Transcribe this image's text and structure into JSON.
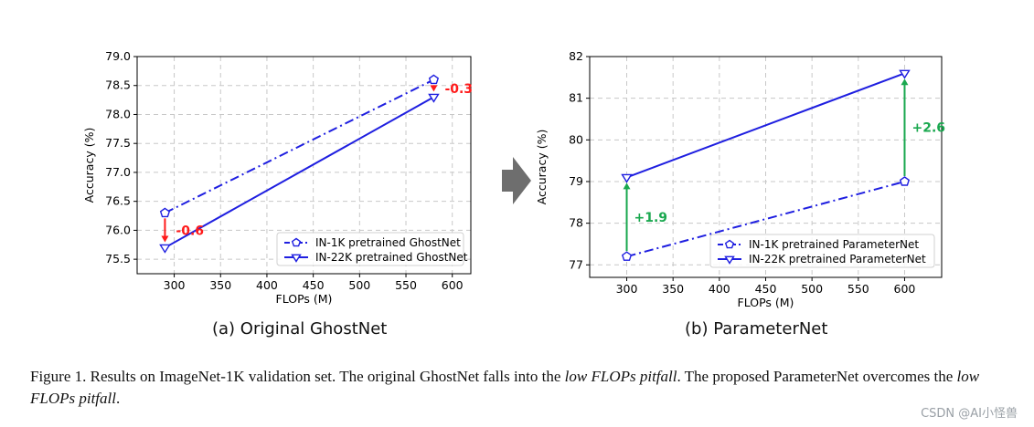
{
  "chart_data": [
    {
      "type": "line",
      "panel_id": "a",
      "caption": "(a) Original GhostNet",
      "xlabel": "FLOPs (M)",
      "ylabel": "Accuracy (%)",
      "xlim": [
        260,
        620
      ],
      "ylim": [
        75.25,
        79.0
      ],
      "xticks": [
        300,
        350,
        400,
        450,
        500,
        550,
        600
      ],
      "yticks": [
        75.5,
        76.0,
        76.5,
        77.0,
        77.5,
        78.0,
        78.5,
        79.0
      ],
      "ytick_labels": [
        "75.5",
        "76.0",
        "76.5",
        "77.0",
        "77.5",
        "78.0",
        "78.5",
        "79.0"
      ],
      "grid": true,
      "legend_position": "lower-right",
      "series": [
        {
          "name": "IN-1K pretrained GhostNet",
          "x": [
            290,
            580
          ],
          "y": [
            76.3,
            78.6
          ],
          "color": "#1f1fe0",
          "linestyle": "dashdot",
          "marker": "pentagon"
        },
        {
          "name": "IN-22K pretrained GhostNet",
          "x": [
            290,
            580
          ],
          "y": [
            75.7,
            78.3
          ],
          "color": "#1f1fe0",
          "linestyle": "solid",
          "marker": "triangle-down"
        }
      ],
      "annotations": [
        {
          "text": "-0.6",
          "color": "#ff1a1a",
          "x": 290,
          "from_y": 76.3,
          "to_y": 75.7
        },
        {
          "text": "-0.3",
          "color": "#ff1a1a",
          "x": 580,
          "from_y": 78.6,
          "to_y": 78.3
        }
      ]
    },
    {
      "type": "line",
      "panel_id": "b",
      "caption": "(b) ParameterNet",
      "xlabel": "FLOPs (M)",
      "ylabel": "Accuracy (%)",
      "xlim": [
        260,
        640
      ],
      "ylim": [
        76.7,
        82.0
      ],
      "xticks": [
        300,
        350,
        400,
        450,
        500,
        550,
        600
      ],
      "yticks": [
        77,
        78,
        79,
        80,
        81,
        82
      ],
      "ytick_labels": [
        "77",
        "78",
        "79",
        "80",
        "81",
        "82"
      ],
      "grid": true,
      "legend_position": "lower-right",
      "series": [
        {
          "name": "IN-1K pretrained ParameterNet",
          "x": [
            300,
            600
          ],
          "y": [
            77.2,
            79.0
          ],
          "color": "#1f1fe0",
          "linestyle": "dashdot",
          "marker": "pentagon"
        },
        {
          "name": "IN-22K pretrained ParameterNet",
          "x": [
            300,
            600
          ],
          "y": [
            79.1,
            81.6
          ],
          "color": "#1f1fe0",
          "linestyle": "solid",
          "marker": "triangle-down"
        }
      ],
      "annotations": [
        {
          "text": "+1.9",
          "color": "#1aa84f",
          "x": 300,
          "from_y": 77.2,
          "to_y": 79.1
        },
        {
          "text": "+2.6",
          "color": "#1aa84f",
          "x": 600,
          "from_y": 79.0,
          "to_y": 81.6
        }
      ]
    }
  ],
  "figure_caption": {
    "part1": "Figure 1.  Results on ImageNet-1K validation set.  The original GhostNet falls into the ",
    "em1": "low FLOPs pitfall",
    "part2": ".  The proposed ParameterNet overcomes the ",
    "em2": "low FLOPs pitfall",
    "part3": "."
  },
  "watermark": "CSDN @AI小怪兽",
  "colors": {
    "arrow": "#6e6e6e"
  }
}
